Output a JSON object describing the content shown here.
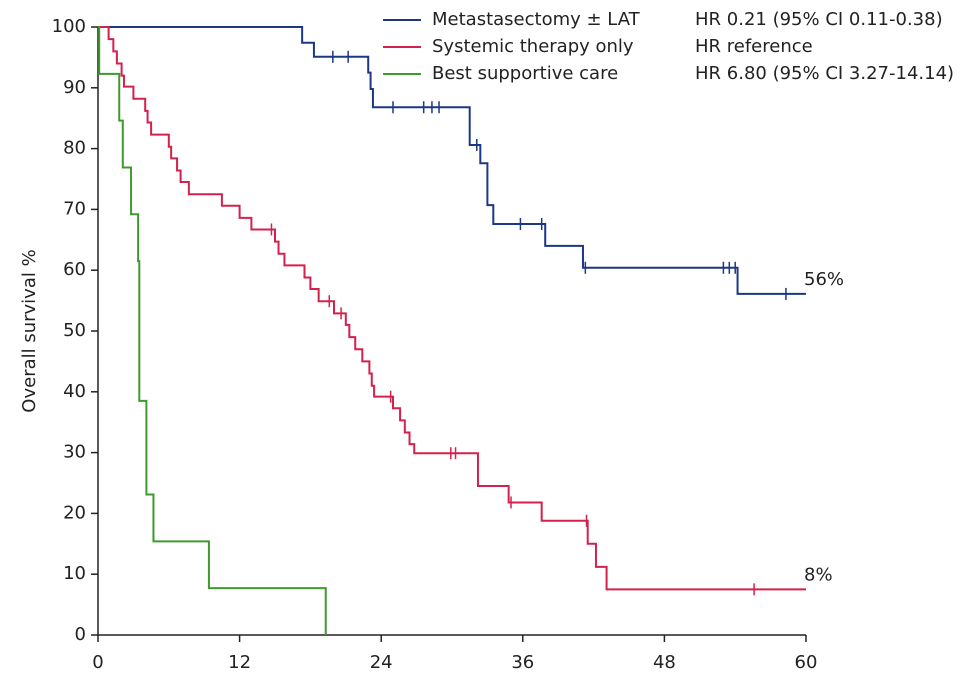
{
  "chart_data": {
    "type": "line",
    "step": "post",
    "y_label": "Overall survival %",
    "xlim": [
      0,
      60
    ],
    "xticks": [
      0,
      12,
      24,
      36,
      48,
      60
    ],
    "ylim": [
      0,
      100
    ],
    "yticks": [
      0,
      10,
      20,
      30,
      40,
      50,
      60,
      70,
      80,
      90,
      100
    ],
    "legend": "upper right",
    "series": [
      {
        "name": "Metastasectomy ± LAT",
        "hr": "HR 0.21 (95% CI 0.11-0.38)",
        "color": "#1b3785",
        "x": [
          0,
          17.3,
          18.3,
          22.9,
          23.1,
          23.3,
          31.5,
          32.4,
          33.0,
          33.5,
          37.9,
          41.1,
          54.2,
          60
        ],
        "values": [
          100,
          97.4,
          95.1,
          92.5,
          89.8,
          86.8,
          80.6,
          77.6,
          70.7,
          67.6,
          64.0,
          60.4,
          56.1,
          56.1
        ],
        "censored_x": [
          19.9,
          21.2,
          25.0,
          27.6,
          28.3,
          28.9,
          32.1,
          35.8,
          37.6,
          41.3,
          53.0,
          53.5,
          54.0,
          58.3
        ],
        "censored_y": [
          95.1,
          95.1,
          86.8,
          86.8,
          86.8,
          86.8,
          80.6,
          67.6,
          67.6,
          60.4,
          60.4,
          60.4,
          60.4,
          56.1
        ],
        "end_label": "56%"
      },
      {
        "name": "Systemic therapy only",
        "hr": "HR reference",
        "color": "#d4204c",
        "x": [
          0,
          0.9,
          1.3,
          1.6,
          2.0,
          2.2,
          3.0,
          4.0,
          4.2,
          4.5,
          6.0,
          6.2,
          6.7,
          7.0,
          7.7,
          10.5,
          12.0,
          13.0,
          15.0,
          15.3,
          15.8,
          17.5,
          18.0,
          18.7,
          20.0,
          21.0,
          21.3,
          21.8,
          22.4,
          23.0,
          23.2,
          23.4,
          25.0,
          25.6,
          26.0,
          26.4,
          26.8,
          32.2,
          34.8,
          37.6,
          41.5,
          42.2,
          43.1,
          60
        ],
        "values": [
          100,
          98,
          96,
          94,
          92,
          90.2,
          88.2,
          86.2,
          84.3,
          82.3,
          80.3,
          78.4,
          76.4,
          74.5,
          72.5,
          70.6,
          68.6,
          66.7,
          64.7,
          62.7,
          60.8,
          58.8,
          56.9,
          54.9,
          52.9,
          51,
          49,
          47,
          45,
          43,
          41,
          39.2,
          37.3,
          35.3,
          33.3,
          31.4,
          29.9,
          24.5,
          21.8,
          18.8,
          15.0,
          11.2,
          7.5,
          7.5
        ],
        "censored_x": [
          14.7,
          19.6,
          20.6,
          24.8,
          29.9,
          30.3,
          35.0,
          41.4,
          55.6
        ],
        "censored_y": [
          66.7,
          54.9,
          52.9,
          39.2,
          29.9,
          29.9,
          21.8,
          18.8,
          7.5
        ],
        "end_label": "8%"
      },
      {
        "name": "Best supportive care",
        "hr": "HR 6.80 (95% CI 3.27-14.14)",
        "color": "#3f9a2e",
        "x": [
          0,
          0.1,
          1.8,
          2.1,
          2.8,
          3.4,
          3.5,
          4.1,
          4.7,
          9.4,
          19.3
        ],
        "values": [
          100,
          92.3,
          84.6,
          76.9,
          69.2,
          61.5,
          38.5,
          23.1,
          15.4,
          7.7,
          0
        ],
        "censored_x": [],
        "censored_y": []
      }
    ]
  }
}
